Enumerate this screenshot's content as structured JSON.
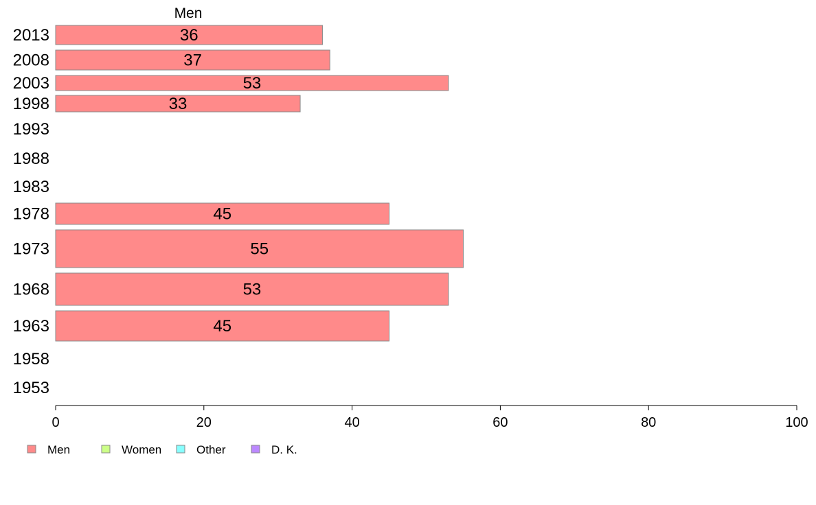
{
  "chart_data": {
    "type": "bar",
    "orientation": "horizontal",
    "panel_title": "Men",
    "categories": [
      "2013",
      "2008",
      "2003",
      "1998",
      "1993",
      "1988",
      "1983",
      "1978",
      "1973",
      "1968",
      "1963",
      "1958",
      "1953"
    ],
    "series": [
      {
        "name": "Men",
        "color": "#ff8a8a",
        "values": [
          36,
          37,
          53,
          33,
          null,
          null,
          null,
          45,
          55,
          53,
          45,
          null,
          null
        ]
      }
    ],
    "xlim": [
      0,
      100
    ],
    "xticks": [
      0,
      20,
      40,
      60,
      80,
      100
    ],
    "grid": false,
    "legend": {
      "placement": "bottom-left",
      "items": [
        {
          "label": "Men",
          "color": "#ff8a8a"
        },
        {
          "label": "Women",
          "color": "#ccff88"
        },
        {
          "label": "Other",
          "color": "#88ffff"
        },
        {
          "label": "D. K.",
          "color": "#bb88ff"
        }
      ]
    }
  }
}
